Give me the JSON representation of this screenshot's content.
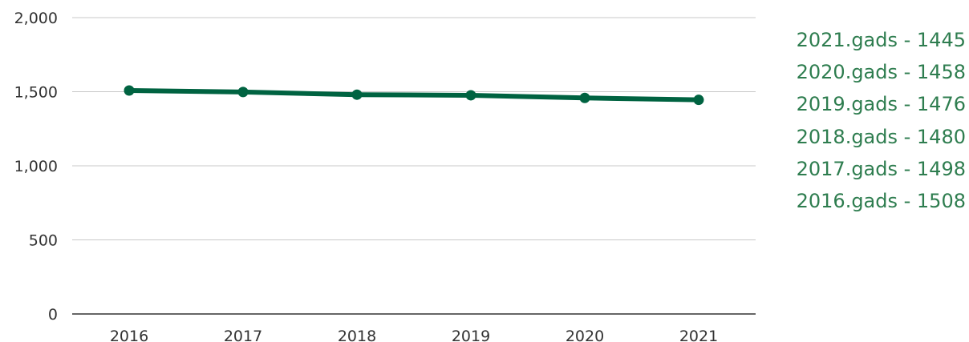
{
  "chart_data": {
    "type": "line",
    "x": [
      "2016",
      "2017",
      "2018",
      "2019",
      "2020",
      "2021"
    ],
    "series": [
      {
        "values": [
          1508,
          1498,
          1480,
          1476,
          1458,
          1445
        ]
      }
    ],
    "yticks": [
      "0",
      "500",
      "1,000",
      "1,500",
      "2,000"
    ],
    "ytick_values": [
      0,
      500,
      1000,
      1500,
      2000
    ],
    "ylim": [
      0,
      2000
    ],
    "grid": true,
    "legend_position": "right",
    "legend": [
      "2021.gads - 1445",
      "2020.gads - 1458",
      "2019.gads - 1476",
      "2018.gads - 1480",
      "2017.gads - 1498",
      "2016.gads - 1508"
    ],
    "colors": {
      "line": "#006341",
      "grid": "#c8c8c8",
      "axis": "#333333",
      "legend_text": "#2e7d4f"
    }
  }
}
